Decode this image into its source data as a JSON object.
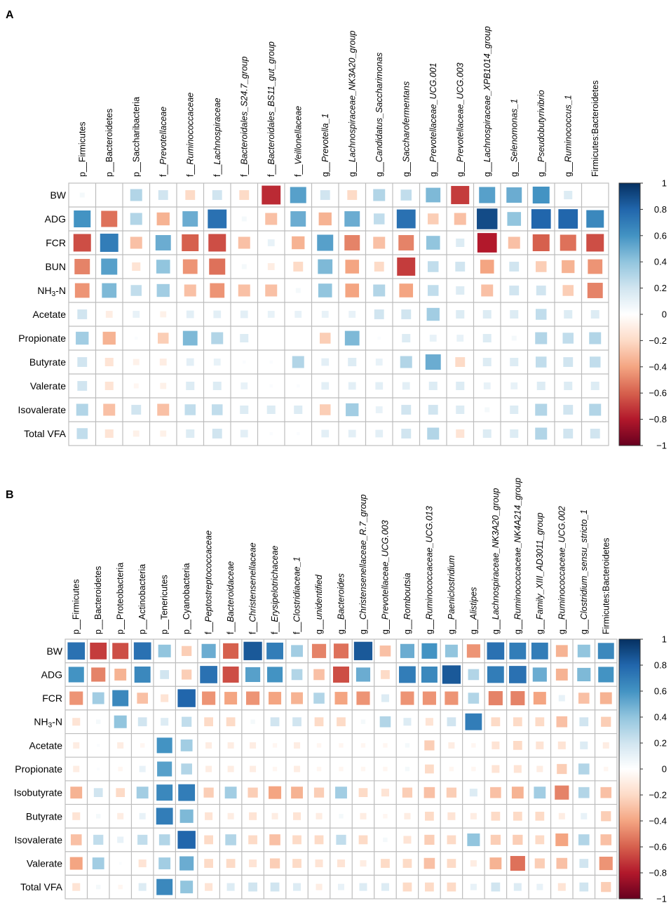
{
  "chart_data": [
    {
      "type": "heatmap",
      "panel_label": "A",
      "columns": [
        {
          "prefix": "p__",
          "name": "Firmicutes",
          "italic": false
        },
        {
          "prefix": "p__",
          "name": "Bacteroidetes",
          "italic": false
        },
        {
          "prefix": "p__",
          "name": "Saccharibacteria",
          "italic": false
        },
        {
          "prefix": "f__",
          "name": "Prevotellaceae",
          "italic": true
        },
        {
          "prefix": "f__",
          "name": "Ruminococcaceae",
          "italic": true
        },
        {
          "prefix": "f__",
          "name": "Lachnospiraceae",
          "italic": true
        },
        {
          "prefix": "f__",
          "name": "Bacteroidales_S24.7_group",
          "italic": true
        },
        {
          "prefix": "f__",
          "name": "Bacteroidales_BS11_gut_group",
          "italic": true
        },
        {
          "prefix": "f__",
          "name": "Veillonellaceae",
          "italic": true
        },
        {
          "prefix": "g__",
          "name": "Prevotella_1",
          "italic": true
        },
        {
          "prefix": "g__",
          "name": "Lachnospiraceae_NK3A20_group",
          "italic": true
        },
        {
          "prefix": "g__",
          "name": "Candidatus_Saccharimonas",
          "italic": true
        },
        {
          "prefix": "g__",
          "name": "Saccharofermentans",
          "italic": true
        },
        {
          "prefix": "g__",
          "name": "Prevotellaceae_UCG.001",
          "italic": true
        },
        {
          "prefix": "g__",
          "name": "Prevotellaceae_UCG.003",
          "italic": true
        },
        {
          "prefix": "g__",
          "name": "Lachnospiraceae_XPB1014_group",
          "italic": true
        },
        {
          "prefix": "g__",
          "name": "Selenomonas_1",
          "italic": true
        },
        {
          "prefix": "g__",
          "name": "Pseudobutyrivibrio",
          "italic": true
        },
        {
          "prefix": "g__",
          "name": "Ruminococcus_1",
          "italic": true
        },
        {
          "prefix": "",
          "name": "Firmicutes:Bacteroidetes",
          "italic": false
        }
      ],
      "rows": [
        {
          "main": "BW",
          "sub": "",
          "tail": ""
        },
        {
          "main": "ADG",
          "sub": "",
          "tail": ""
        },
        {
          "main": "FCR",
          "sub": "",
          "tail": ""
        },
        {
          "main": "BUN",
          "sub": "",
          "tail": ""
        },
        {
          "main": "NH",
          "sub": "3",
          "tail": "-N"
        },
        {
          "main": "Acetate",
          "sub": "",
          "tail": ""
        },
        {
          "main": "Propionate",
          "sub": "",
          "tail": ""
        },
        {
          "main": "Butyrate",
          "sub": "",
          "tail": ""
        },
        {
          "main": "Valerate",
          "sub": "",
          "tail": ""
        },
        {
          "main": "Isovalerate",
          "sub": "",
          "tail": ""
        },
        {
          "main": "Total VFA",
          "sub": "",
          "tail": ""
        }
      ],
      "values": [
        [
          0.05,
          0,
          0.3,
          0.2,
          -0.2,
          0.2,
          -0.2,
          -0.75,
          0.55,
          0.2,
          -0.2,
          0.3,
          0.25,
          0.45,
          -0.7,
          0.55,
          0.5,
          0.6,
          0.15,
          0
        ],
        [
          0.6,
          -0.55,
          0.3,
          -0.35,
          0.5,
          0.75,
          0.05,
          -0.3,
          0.5,
          -0.35,
          0.5,
          0.25,
          0.75,
          -0.25,
          -0.3,
          0.9,
          0.4,
          0.8,
          0.8,
          0.65
        ],
        [
          -0.65,
          0.7,
          -0.3,
          0.5,
          -0.6,
          -0.65,
          -0.3,
          0.1,
          -0.35,
          0.55,
          -0.5,
          -0.3,
          -0.5,
          0.4,
          0.15,
          -0.8,
          -0.3,
          -0.6,
          -0.55,
          -0.65
        ],
        [
          -0.5,
          0.55,
          -0.15,
          0.4,
          -0.45,
          -0.55,
          0.05,
          -0.1,
          -0.2,
          0.45,
          -0.4,
          -0.2,
          -0.7,
          0.25,
          0.2,
          -0.4,
          0.2,
          -0.25,
          -0.35,
          -0.45
        ],
        [
          -0.45,
          0.45,
          0.25,
          0.35,
          -0.3,
          -0.45,
          -0.3,
          -0.3,
          0.05,
          0.4,
          -0.4,
          0.3,
          -0.4,
          0.25,
          0.15,
          -0.3,
          0.2,
          0.2,
          -0.25,
          -0.5
        ],
        [
          0.2,
          -0.1,
          0.1,
          -0.08,
          0.12,
          0.12,
          0.12,
          0.1,
          0.1,
          0.1,
          0.1,
          0.2,
          0.2,
          0.35,
          0.15,
          0.15,
          0.15,
          0.25,
          0.15,
          0.15
        ],
        [
          0.35,
          -0.35,
          0.02,
          -0.25,
          0.45,
          0.3,
          0.15,
          0,
          0,
          -0.25,
          0.45,
          0.02,
          0.15,
          0.1,
          0.1,
          0.15,
          0.05,
          0.3,
          0.25,
          0.3
        ],
        [
          0.2,
          -0.15,
          -0.08,
          -0.1,
          0.12,
          0.1,
          0.02,
          0.02,
          0.3,
          0.12,
          0.15,
          0.1,
          0.3,
          0.5,
          -0.2,
          0.15,
          0.15,
          0.25,
          0.2,
          0.25
        ],
        [
          0.2,
          -0.15,
          -0.05,
          -0.08,
          0.15,
          0.15,
          0.1,
          0.02,
          0.02,
          0.12,
          0.12,
          0.12,
          0.12,
          0.15,
          0.15,
          0.1,
          0.1,
          0.15,
          0.15,
          0.15
        ],
        [
          0.3,
          -0.3,
          0.2,
          -0.3,
          0.25,
          0.25,
          0.15,
          0.15,
          0.15,
          -0.25,
          0.35,
          0.1,
          0.2,
          0.2,
          0.15,
          0.05,
          0.15,
          0.3,
          0.2,
          0.3
        ],
        [
          0.25,
          -0.15,
          -0.08,
          -0.08,
          0.15,
          0.2,
          0.12,
          0.02,
          0.02,
          0.12,
          0.12,
          0.12,
          0.2,
          0.3,
          -0.15,
          0.15,
          0.15,
          0.3,
          0.2,
          0.2
        ]
      ],
      "colorbar": {
        "min": -1,
        "max": 1,
        "ticks": [
          "1",
          "0.8",
          "0.6",
          "0.4",
          "0.2",
          "0",
          "−0.2",
          "−0.4",
          "−0.6",
          "−0.8",
          "−1"
        ]
      }
    },
    {
      "type": "heatmap",
      "panel_label": "B",
      "columns": [
        {
          "prefix": "p__",
          "name": "Firmicutes",
          "italic": false
        },
        {
          "prefix": "p__",
          "name": "Bacteroidetes",
          "italic": false
        },
        {
          "prefix": "p__",
          "name": "Proteobacteria",
          "italic": false
        },
        {
          "prefix": "p__",
          "name": "Actinobacteria",
          "italic": false
        },
        {
          "prefix": "p__",
          "name": "Tenericutes",
          "italic": false
        },
        {
          "prefix": "p__",
          "name": "Cyanobacteria",
          "italic": false
        },
        {
          "prefix": "f__",
          "name": "Peptostreptococcaceae",
          "italic": true
        },
        {
          "prefix": "f__",
          "name": "Bacteroidaceae",
          "italic": true
        },
        {
          "prefix": "f__",
          "name": "Christensenellaceae",
          "italic": true
        },
        {
          "prefix": "f__",
          "name": "Erysipelotrichaceae",
          "italic": true
        },
        {
          "prefix": "f__",
          "name": "Clostridiaceae_1",
          "italic": true
        },
        {
          "prefix": "g__",
          "name": "unidentified",
          "italic": true
        },
        {
          "prefix": "g__",
          "name": "Bacteroides",
          "italic": true
        },
        {
          "prefix": "g__",
          "name": "Christensenellaceae_R.7_group",
          "italic": true
        },
        {
          "prefix": "g__",
          "name": "Prevotellaceae_UCG.003",
          "italic": true
        },
        {
          "prefix": "g__",
          "name": "Romboutsia",
          "italic": true
        },
        {
          "prefix": "g__",
          "name": "Ruminococcaceae_UCG.013",
          "italic": true
        },
        {
          "prefix": "g__",
          "name": "Paeniclostridium",
          "italic": true
        },
        {
          "prefix": "g__",
          "name": "Alistipes",
          "italic": true
        },
        {
          "prefix": "g__",
          "name": "Lachnospiraceae_NK3A20_group",
          "italic": true
        },
        {
          "prefix": "g__",
          "name": "Ruminococcaceae_NK4A214_group",
          "italic": true
        },
        {
          "prefix": "g__",
          "name": "Family_XIII_AD3011_group",
          "italic": true
        },
        {
          "prefix": "g__",
          "name": "Ruminococcaceae_UCG.002",
          "italic": true
        },
        {
          "prefix": "g__",
          "name": "Clostridium_sensu_stricto_1",
          "italic": true
        },
        {
          "prefix": "",
          "name": "Firmicutes:Bacteroidetes",
          "italic": false
        }
      ],
      "rows": [
        {
          "main": "BW",
          "sub": "",
          "tail": ""
        },
        {
          "main": "ADG",
          "sub": "",
          "tail": ""
        },
        {
          "main": "FCR",
          "sub": "",
          "tail": ""
        },
        {
          "main": "NH",
          "sub": "3",
          "tail": "-N"
        },
        {
          "main": "Acetate",
          "sub": "",
          "tail": ""
        },
        {
          "main": "Propionate",
          "sub": "",
          "tail": ""
        },
        {
          "main": "Isobutyrate",
          "sub": "",
          "tail": ""
        },
        {
          "main": "Butyrate",
          "sub": "",
          "tail": ""
        },
        {
          "main": "Isovalerate",
          "sub": "",
          "tail": ""
        },
        {
          "main": "Valerate",
          "sub": "",
          "tail": ""
        },
        {
          "main": "Total VFA",
          "sub": "",
          "tail": ""
        }
      ],
      "values": [
        [
          0.75,
          -0.7,
          -0.65,
          0.75,
          0.4,
          -0.25,
          0.5,
          -0.6,
          0.85,
          0.7,
          0.35,
          -0.5,
          -0.55,
          0.85,
          -0.3,
          0.5,
          0.6,
          0.4,
          -0.45,
          0.75,
          0.7,
          0.7,
          -0.35,
          0.4,
          0.65
        ],
        [
          0.6,
          -0.5,
          -0.35,
          0.65,
          0.2,
          -0.25,
          0.75,
          -0.65,
          0.55,
          0.6,
          0.3,
          -0.3,
          -0.65,
          0.5,
          -0.2,
          0.7,
          0.65,
          0.85,
          0.3,
          0.7,
          0.75,
          0.5,
          -0.35,
          0.45,
          0.6
        ],
        [
          -0.45,
          0.35,
          0.65,
          -0.3,
          -0.15,
          0.8,
          -0.45,
          -0.4,
          -0.45,
          -0.4,
          -0.35,
          0.3,
          -0.4,
          -0.45,
          0.15,
          -0.45,
          -0.45,
          -0.45,
          0.3,
          -0.5,
          -0.5,
          -0.4,
          0.1,
          -0.3,
          -0.35
        ],
        [
          -0.15,
          0.05,
          0.4,
          0.2,
          0.15,
          0.25,
          -0.2,
          -0.2,
          0.05,
          0.2,
          0.2,
          -0.2,
          -0.2,
          0.05,
          0.3,
          0.15,
          -0.15,
          0.2,
          0.7,
          -0.2,
          -0.2,
          -0.2,
          -0.3,
          0.2,
          -0.25
        ],
        [
          -0.1,
          0.02,
          -0.1,
          -0.05,
          0.6,
          0.35,
          -0.1,
          -0.1,
          -0.1,
          -0.05,
          -0.1,
          -0.05,
          -0.05,
          -0.05,
          -0.05,
          0.05,
          -0.25,
          -0.1,
          -0.05,
          -0.15,
          -0.2,
          -0.15,
          -0.15,
          0.15,
          -0.1
        ],
        [
          -0.1,
          0.02,
          -0.05,
          0.1,
          0.55,
          0.3,
          -0.1,
          -0.1,
          -0.1,
          -0.05,
          -0.1,
          -0.05,
          -0.05,
          -0.05,
          -0.05,
          0.05,
          -0.2,
          -0.05,
          -0.05,
          -0.15,
          -0.15,
          -0.1,
          -0.25,
          0.3,
          -0.05
        ],
        [
          -0.35,
          0.2,
          -0.2,
          0.35,
          0.65,
          0.7,
          -0.25,
          0.35,
          -0.25,
          -0.4,
          -0.35,
          -0.25,
          0.35,
          -0.2,
          -0.15,
          -0.25,
          -0.3,
          -0.25,
          0.15,
          -0.3,
          -0.35,
          0.35,
          -0.5,
          0.3,
          -0.3
        ],
        [
          -0.15,
          0.05,
          -0.1,
          0.1,
          0.7,
          0.45,
          -0.15,
          -0.1,
          -0.15,
          -0.1,
          -0.15,
          -0.1,
          0.05,
          -0.1,
          -0.05,
          -0.1,
          -0.2,
          -0.15,
          -0.1,
          -0.2,
          -0.2,
          -0.2,
          -0.1,
          0.1,
          -0.25
        ],
        [
          -0.3,
          0.25,
          0.1,
          0.25,
          0.3,
          0.8,
          -0.2,
          0.3,
          -0.2,
          -0.3,
          -0.2,
          -0.2,
          0.25,
          -0.2,
          0.05,
          -0.15,
          -0.25,
          -0.2,
          0.4,
          -0.25,
          -0.25,
          -0.2,
          -0.4,
          0.3,
          -0.3
        ],
        [
          -0.4,
          0.35,
          0.02,
          -0.15,
          0.35,
          0.5,
          -0.2,
          -0.2,
          -0.15,
          -0.25,
          -0.2,
          -0.15,
          -0.15,
          -0.1,
          -0.2,
          -0.2,
          -0.3,
          -0.2,
          -0.1,
          -0.35,
          -0.55,
          -0.25,
          -0.3,
          0.2,
          -0.45
        ],
        [
          -0.15,
          0.05,
          -0.05,
          0.15,
          0.65,
          0.4,
          -0.15,
          0.15,
          0.2,
          0.2,
          0.15,
          -0.1,
          0.1,
          0.15,
          0.15,
          -0.2,
          -0.2,
          -0.2,
          0.1,
          0.2,
          0.15,
          0.1,
          -0.15,
          0.2,
          -0.25
        ]
      ],
      "colorbar": {
        "min": -1,
        "max": 1,
        "ticks": [
          "1",
          "0.8",
          "0.6",
          "0.4",
          "0.2",
          "0",
          "−0.2",
          "−0.4",
          "−0.6",
          "−0.8",
          "−1"
        ]
      }
    }
  ]
}
